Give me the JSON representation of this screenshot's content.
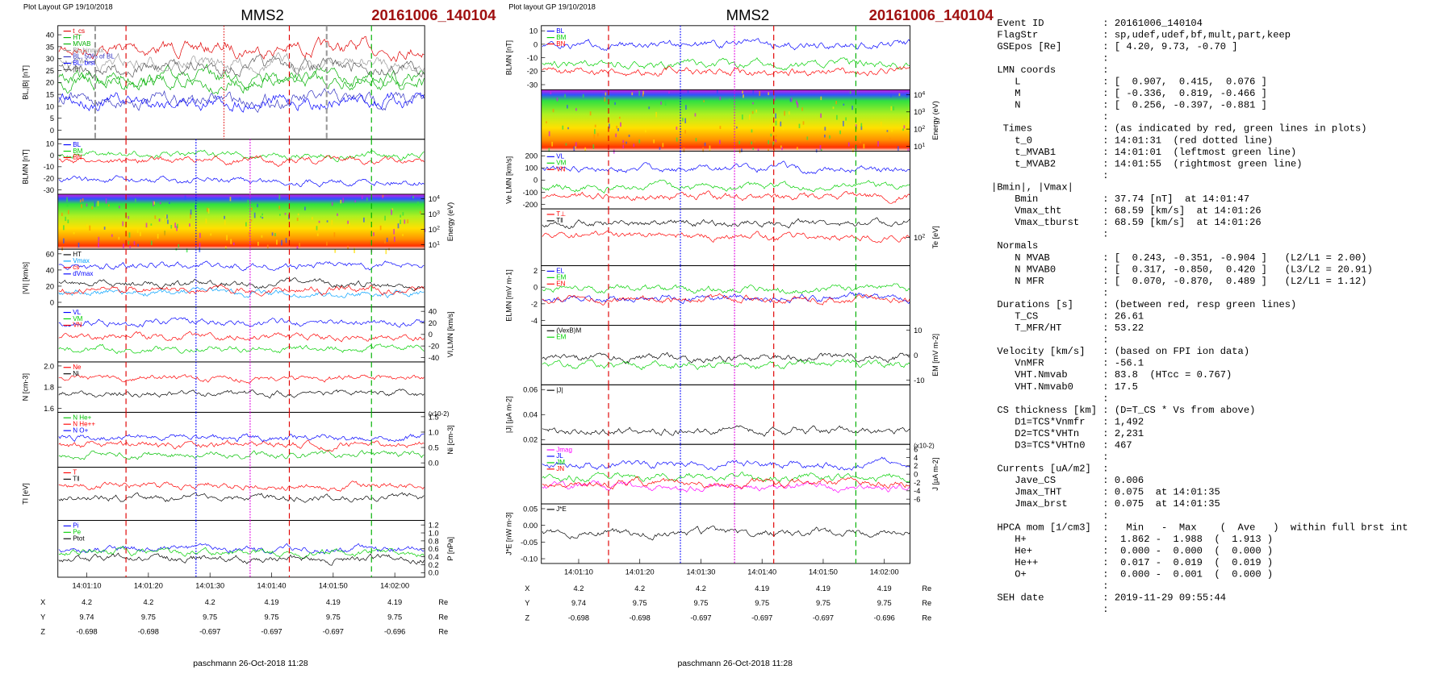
{
  "plots": [
    {
      "layout_label": "Plot Layout GP 19/10/2018",
      "spacecraft": "MMS2",
      "event": "20161006_140104",
      "panels": [
        {
          "ylabel": "BL,|B| [nT]",
          "side": "left",
          "ticks": [
            "40",
            "35",
            "30",
            "25",
            "20",
            "15",
            "10",
            "5",
            "0"
          ],
          "legend": [
            {
              "text": "t_cs",
              "color": "#e00000"
            },
            {
              "text": "HT",
              "color": "#00b000"
            },
            {
              "text": "MVAB",
              "color": "#00b000"
            },
            {
              "text": "BL,binmax",
              "color": "#999999"
            },
            {
              "text": "BL, 50% of BL",
              "color": "#3030c0"
            },
            {
              "text": "BL, brst",
              "color": "#0000ff"
            },
            {
              "text": "|B|",
              "color": "#555555"
            }
          ]
        },
        {
          "ylabel": "BLMN [nT]",
          "side": "left",
          "ticks": [
            "10",
            "0",
            "-10",
            "-20",
            "-30"
          ],
          "legend": [
            {
              "text": "BL",
              "color": "#0000ff"
            },
            {
              "text": "BM",
              "color": "#00d000"
            },
            {
              "text": "BN",
              "color": "#ff0000"
            }
          ]
        },
        {
          "ylabel": "Energy (eV)",
          "side": "right",
          "spectrogram": true,
          "ticks": [
            {
              "base": "10",
              "exp": "4"
            },
            {
              "base": "10",
              "exp": "3"
            },
            {
              "base": "10",
              "exp": "2"
            },
            {
              "base": "10",
              "exp": "1"
            }
          ]
        },
        {
          "ylabel": "|VI| [km/s]",
          "side": "left",
          "ticks": [
            "60",
            "40",
            "20",
            "0"
          ],
          "legend": [
            {
              "text": "HT",
              "color": "#000000"
            },
            {
              "text": "Vmax",
              "color": "#00a0ff"
            },
            {
              "text": "cs",
              "color": "#ff0000"
            },
            {
              "text": "dVmax",
              "color": "#0000ff"
            }
          ]
        },
        {
          "ylabel": "VI,LMN [km/s]",
          "side": "right",
          "ticks": [
            "40",
            "20",
            "0",
            "-20",
            "-40"
          ],
          "legend": [
            {
              "text": "VL",
              "color": "#0000ff"
            },
            {
              "text": "VM",
              "color": "#00d000"
            },
            {
              "text": "VN",
              "color": "#ff0000"
            }
          ]
        },
        {
          "ylabel": "N [cm-3]",
          "side": "left",
          "ticks": [
            "2.0",
            "1.8",
            "1.6"
          ],
          "legend": [
            {
              "text": "Ne",
              "color": "#ff0000"
            },
            {
              "text": "Ni",
              "color": "#000000"
            }
          ]
        },
        {
          "ylabel": "Ni [cm-3]",
          "side": "right",
          "ticks": [
            "1.5",
            "1.0",
            "0.5",
            "0.0"
          ],
          "multiplier": "(x10-2)",
          "legend": [
            {
              "text": "N He+",
              "color": "#00c000"
            },
            {
              "text": "N He++",
              "color": "#ff0000"
            },
            {
              "text": "N O+",
              "color": "#0000ff"
            }
          ]
        },
        {
          "ylabel": "TI [eV]",
          "side": "left",
          "ticks": [],
          "legend": [
            {
              "text": "T",
              "color": "#ff0000"
            },
            {
              "text": "T‖",
              "color": "#000000"
            }
          ]
        },
        {
          "ylabel": "P [nPa]",
          "side": "right",
          "ticks": [
            "1.2",
            "1.0",
            "0.8",
            "0.6",
            "0.4",
            "0.2",
            "0.0"
          ],
          "legend": [
            {
              "text": "Pi",
              "color": "#0000ff"
            },
            {
              "text": "Pe",
              "color": "#00d000"
            },
            {
              "text": "Ptot",
              "color": "#000000"
            }
          ]
        }
      ],
      "time_ticks": [
        "14:01:10",
        "14:01:20",
        "14:01:30",
        "14:01:40",
        "14:01:50",
        "14:02:00"
      ],
      "positions": [
        {
          "label": "X",
          "values": [
            "4.2",
            "4.2",
            "4.2",
            "4.19",
            "4.19",
            "4.19"
          ],
          "unit": "Re"
        },
        {
          "label": "Y",
          "values": [
            "9.74",
            "9.75",
            "9.75",
            "9.75",
            "9.75",
            "9.75"
          ],
          "unit": "Re"
        },
        {
          "label": "Z",
          "values": [
            "-0.698",
            "-0.698",
            "-0.697",
            "-0.697",
            "-0.697",
            "-0.696"
          ],
          "unit": "Re"
        }
      ],
      "footer": "paschmann 26-Oct-2018 11:28"
    },
    {
      "layout_label": "Plot layout GP 19/10/2018",
      "spacecraft": "MMS2",
      "event": "20161006_140104",
      "panels": [
        {
          "ylabel": "BLMN [nT]",
          "side": "left",
          "ticks": [
            "10",
            "0",
            "-10",
            "-20",
            "-30"
          ],
          "legend": [
            {
              "text": "BL",
              "color": "#0000ff"
            },
            {
              "text": "BM",
              "color": "#00d000"
            },
            {
              "text": "BN",
              "color": "#ff0000"
            }
          ]
        },
        {
          "ylabel": "Energy (eV)",
          "side": "right",
          "spectrogram": true,
          "ticks": [
            {
              "base": "10",
              "exp": "4"
            },
            {
              "base": "10",
              "exp": "3"
            },
            {
              "base": "10",
              "exp": "2"
            },
            {
              "base": "10",
              "exp": "1"
            }
          ]
        },
        {
          "ylabel": "Ve LMN [km/s]",
          "side": "left",
          "ticks": [
            "200",
            "100",
            "0",
            "-100",
            "-200"
          ],
          "legend": [
            {
              "text": "VL",
              "color": "#0000ff"
            },
            {
              "text": "VM",
              "color": "#00d000"
            },
            {
              "text": "VN",
              "color": "#ff0000"
            }
          ]
        },
        {
          "ylabel": "Te [eV]",
          "side": "right",
          "ticks": [
            {
              "base": "10",
              "exp": "2"
            }
          ],
          "legend": [
            {
              "text": "T⊥",
              "color": "#ff0000"
            },
            {
              "text": "T‖",
              "color": "#000000"
            }
          ]
        },
        {
          "ylabel": "ELMN [mV m-1]",
          "side": "left",
          "ticks": [
            "2",
            "0",
            "-2",
            "-4"
          ],
          "legend": [
            {
              "text": "EL",
              "color": "#0000ff"
            },
            {
              "text": "EM",
              "color": "#00d000"
            },
            {
              "text": "EN",
              "color": "#ff0000"
            }
          ]
        },
        {
          "ylabel": "EM [mV m-2]",
          "side": "right",
          "ticks": [
            "10",
            "0",
            "-10"
          ],
          "legend": [
            {
              "text": "(VexB)M",
              "color": "#000000"
            },
            {
              "text": "EM",
              "color": "#00d000"
            }
          ]
        },
        {
          "ylabel": "|J| [µA m-2]",
          "side": "left",
          "ticks": [
            "0.06",
            "0.04",
            "0.02"
          ],
          "legend": [
            {
              "text": "|J|",
              "color": "#000000"
            }
          ]
        },
        {
          "ylabel": "J [µA m-2]",
          "side": "right",
          "ticks": [
            "6",
            "4",
            "2",
            "0",
            "-2",
            "-4",
            "-6"
          ],
          "multiplier": "(x10-2)",
          "legend": [
            {
              "text": "Jmag",
              "color": "#ff00ff"
            },
            {
              "text": "JL",
              "color": "#0000ff"
            },
            {
              "text": "JM",
              "color": "#00d000"
            },
            {
              "text": "JN",
              "color": "#ff0000"
            }
          ]
        },
        {
          "ylabel": "J*E [nW m-3]",
          "side": "left",
          "ticks": [
            "0.05",
            "0.00",
            "-0.05",
            "-0.10"
          ],
          "legend": [
            {
              "text": "J*E",
              "color": "#000000"
            }
          ]
        }
      ],
      "time_ticks": [
        "14:01:10",
        "14:01:20",
        "14:01:30",
        "14:01:40",
        "14:01:50",
        "14:02:00"
      ],
      "positions": [
        {
          "label": "X",
          "values": [
            "4.2",
            "4.2",
            "4.2",
            "4.19",
            "4.19",
            "4.19"
          ],
          "unit": "Re"
        },
        {
          "label": "Y",
          "values": [
            "9.74",
            "9.75",
            "9.75",
            "9.75",
            "9.75",
            "9.75"
          ],
          "unit": "Re"
        },
        {
          "label": "Z",
          "values": [
            "-0.698",
            "-0.698",
            "-0.697",
            "-0.697",
            "-0.697",
            "-0.696"
          ],
          "unit": "Re"
        }
      ],
      "footer": "paschmann 26-Oct-2018 11:28"
    }
  ],
  "info": {
    "lines": [
      " Event ID          : 20161006_140104",
      " FlagStr           : sp,udef,udef,bf,mult,part,keep",
      " GSEpos [Re]       : [ 4.20, 9.73, -0.70 ]",
      "                   :",
      " LMN coords        :",
      "    L              : [  0.907,  0.415,  0.076 ]",
      "    M              : [ -0.336,  0.819, -0.466 ]",
      "    N              : [  0.256, -0.397, -0.881 ]",
      "                   :",
      "  Times            : (as indicated by red, green lines in plots)",
      "    t_0            : 14:01:31  (red dotted line)",
      "    t_MVAB1        : 14:01:01  (leftmost green line)",
      "    t_MVAB2        : 14:01:55  (rightmost green line)",
      "                   :",
      "|Bmin|, |Vmax|",
      "    Bmin           : 37.74 [nT]  at 14:01:47",
      "    Vmax_tht       : 68.59 [km/s]  at 14:01:26",
      "    Vmax_tburst    : 68.59 [km/s]  at 14:01:26",
      "                   :",
      " Normals",
      "    N MVAB         : [  0.243, -0.351, -0.904 ]   (L2/L1 = 2.00)",
      "    N MVAB0        : [  0.317, -0.850,  0.420 ]   (L3/L2 = 20.91)",
      "    N MFR          : [  0.070, -0.870,  0.489 ]   (L2/L1 = 1.12)",
      "                   :",
      " Durations [s]     : (between red, resp green lines)",
      "    T_CS           : 26.61",
      "    T_MFR/HT       : 53.22",
      "                   :",
      " Velocity [km/s]   : (based on FPI ion data)",
      "    VnMFR          : -56.1",
      "    VHT.Nmvab      : 83.8  (HTcc = 0.767)",
      "    VHT.Nmvab0     : 17.5",
      "                   :",
      " CS thickness [km] : (D=T_CS * Vs from above)",
      "    D1=TCS*Vnmfr   : 1,492",
      "    D2=TCS*VHTn    : 2,231",
      "    D3=TCS*VHTn0   : 467",
      "                   :",
      " Currents [uA/m2]  :",
      "    Jave_CS        : 0.006",
      "    Jmax_THT       : 0.075  at 14:01:35",
      "    Jmax_brst      : 0.075  at 14:01:35",
      "                   :",
      " HPCA mom [1/cm3]  :   Min   -  Max    (  Ave   )  within full brst int",
      "    H+             :  1.862 -  1.988  (  1.913 )",
      "    He+            :  0.000 -  0.000  (  0.000 )",
      "    He++           :  0.017 -  0.019  (  0.019 )",
      "    O+             :  0.000 -  0.001  (  0.000 )",
      "                   :",
      " SEH date          : 2019-11-29 09:55:44",
      "                   :"
    ]
  }
}
